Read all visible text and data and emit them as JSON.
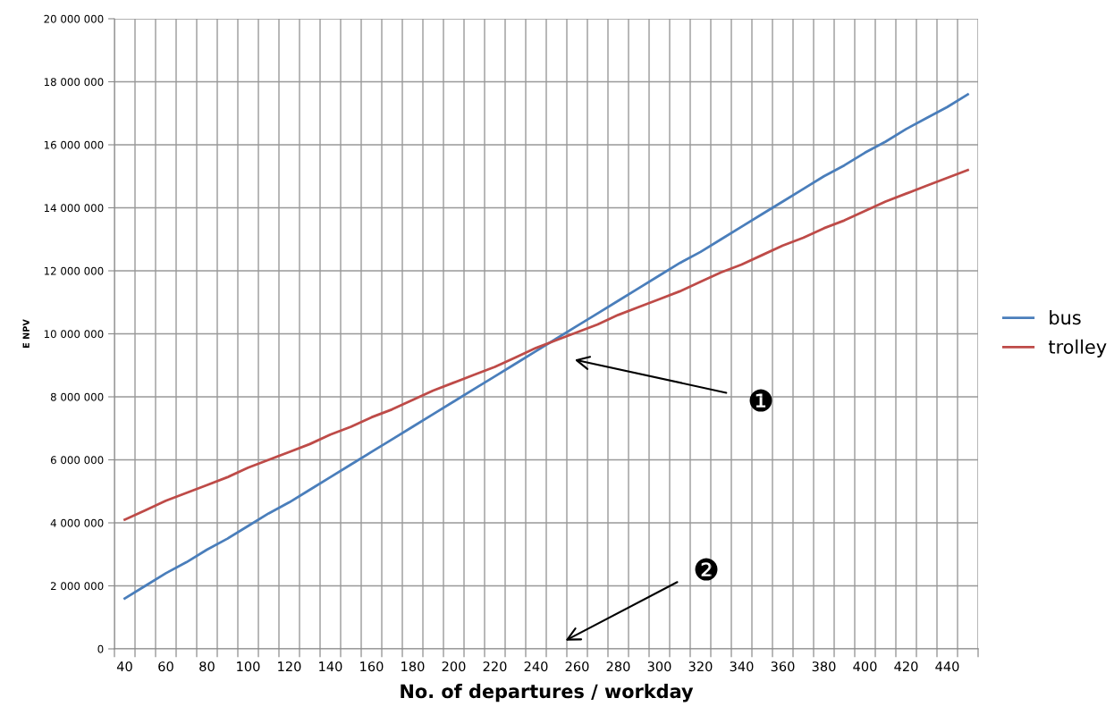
{
  "chart_data": {
    "type": "line",
    "xlabel": "No. of departures / workday",
    "ylabel": "E NPV",
    "categories": [
      "40",
      null,
      "60",
      null,
      "80",
      null,
      "100",
      null,
      "120",
      null,
      "140",
      null,
      "160",
      null,
      "180",
      null,
      "200",
      null,
      "220",
      null,
      "240",
      null,
      "260",
      null,
      "280",
      null,
      "300",
      null,
      "320",
      null,
      "340",
      null,
      "360",
      null,
      "380",
      null,
      "400",
      null,
      "420",
      null,
      "440",
      null
    ],
    "series": [
      {
        "name": "bus",
        "color": "#4a7ebb",
        "values": [
          1600000,
          2000000,
          2400000,
          2750000,
          3150000,
          3500000,
          3900000,
          4300000,
          4650000,
          5050000,
          5450000,
          5850000,
          6250000,
          6650000,
          7050000,
          7450000,
          7850000,
          8250000,
          8650000,
          9050000,
          9450000,
          9850000,
          10250000,
          10650000,
          11050000,
          11450000,
          11850000,
          12250000,
          12600000,
          13000000,
          13400000,
          13800000,
          14200000,
          14600000,
          15000000,
          15350000,
          15750000,
          16100000,
          16500000,
          16850000,
          17200000,
          17600000
        ]
      },
      {
        "name": "trolley",
        "color": "#be4b48",
        "values": [
          4100000,
          4400000,
          4700000,
          4950000,
          5200000,
          5450000,
          5750000,
          6000000,
          6250000,
          6500000,
          6800000,
          7050000,
          7350000,
          7600000,
          7900000,
          8200000,
          8450000,
          8700000,
          8950000,
          9250000,
          9550000,
          9800000,
          10050000,
          10300000,
          10600000,
          10850000,
          11100000,
          11350000,
          11650000,
          11950000,
          12200000,
          12500000,
          12800000,
          13050000,
          13350000,
          13600000,
          13900000,
          14200000,
          14450000,
          14700000,
          14950000,
          15200000
        ]
      }
    ],
    "ylim": [
      0,
      20000000
    ],
    "yticks": [
      {
        "value": 0,
        "label": "0"
      },
      {
        "value": 2000000,
        "label": "2 000 000"
      },
      {
        "value": 4000000,
        "label": "4 000 000"
      },
      {
        "value": 6000000,
        "label": "6 000 000"
      },
      {
        "value": 8000000,
        "label": "8 000 000"
      },
      {
        "value": 10000000,
        "label": "10 000 000"
      },
      {
        "value": 12000000,
        "label": "12 000 000"
      },
      {
        "value": 14000000,
        "label": "14 000 000"
      },
      {
        "value": 16000000,
        "label": "16 000 000"
      },
      {
        "value": 18000000,
        "label": "18 000 000"
      },
      {
        "value": 20000000,
        "label": "20 000 000"
      }
    ],
    "grid": true,
    "legend": "right",
    "marker": "none",
    "line_style": "solid",
    "annotations": [
      "❶",
      "❷"
    ]
  }
}
